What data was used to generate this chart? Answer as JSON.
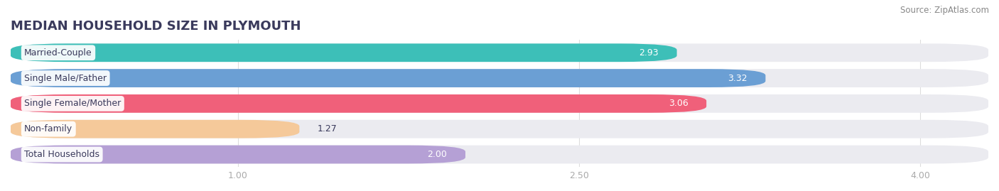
{
  "title": "MEDIAN HOUSEHOLD SIZE IN PLYMOUTH",
  "source": "Source: ZipAtlas.com",
  "categories": [
    "Married-Couple",
    "Single Male/Father",
    "Single Female/Mother",
    "Non-family",
    "Total Households"
  ],
  "values": [
    2.93,
    3.32,
    3.06,
    1.27,
    2.0
  ],
  "bar_colors": [
    "#3DBFB8",
    "#6B9FD4",
    "#F0607A",
    "#F5C99A",
    "#B5A0D5"
  ],
  "xlim_left": 0.0,
  "xlim_right": 4.3,
  "xstart": 0.0,
  "xticks": [
    1.0,
    2.5,
    4.0
  ],
  "xtick_labels": [
    "1.00",
    "2.50",
    "4.00"
  ],
  "background_color": "#ffffff",
  "bar_bg_color": "#ebebf0",
  "title_fontsize": 13,
  "label_fontsize": 9,
  "value_fontsize": 9,
  "source_fontsize": 8.5,
  "title_color": "#3a3a5c",
  "label_color": "#3a3a5c",
  "tick_color": "#aaaaaa"
}
